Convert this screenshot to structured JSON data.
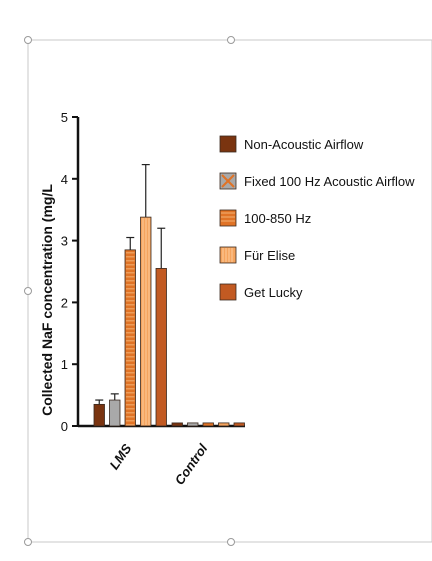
{
  "chart_data": {
    "type": "bar",
    "title": "",
    "xlabel": "",
    "ylabel": "Collected NaF concentration (mg/L",
    "ylim": [
      0,
      5
    ],
    "yticks": [
      "0",
      "1",
      "2",
      "3",
      "4",
      "5"
    ],
    "categories": [
      "LMS",
      "Control"
    ],
    "series": [
      {
        "name": "Non-Acoustic Airflow",
        "values": [
          0.35,
          0.05
        ],
        "errors": [
          0.07,
          0.0
        ],
        "color": "#7a3410"
      },
      {
        "name": "Fixed 100 Hz  Acoustic Airflow",
        "values": [
          0.42,
          0.05
        ],
        "errors": [
          0.1,
          0.0
        ],
        "color": "#a9a9a9"
      },
      {
        "name": "100-850 Hz",
        "values": [
          2.85,
          0.05
        ],
        "errors": [
          0.2,
          0.0
        ],
        "color": "#e07326"
      },
      {
        "name": "Für Elise",
        "values": [
          3.38,
          0.05
        ],
        "errors": [
          0.85,
          0.0
        ],
        "color": "#f5a45e"
      },
      {
        "name": "Get Lucky",
        "values": [
          2.55,
          0.05
        ],
        "errors": [
          0.65,
          0.0
        ],
        "color": "#c25a22"
      }
    ],
    "legend_position": "right",
    "grid": false
  }
}
